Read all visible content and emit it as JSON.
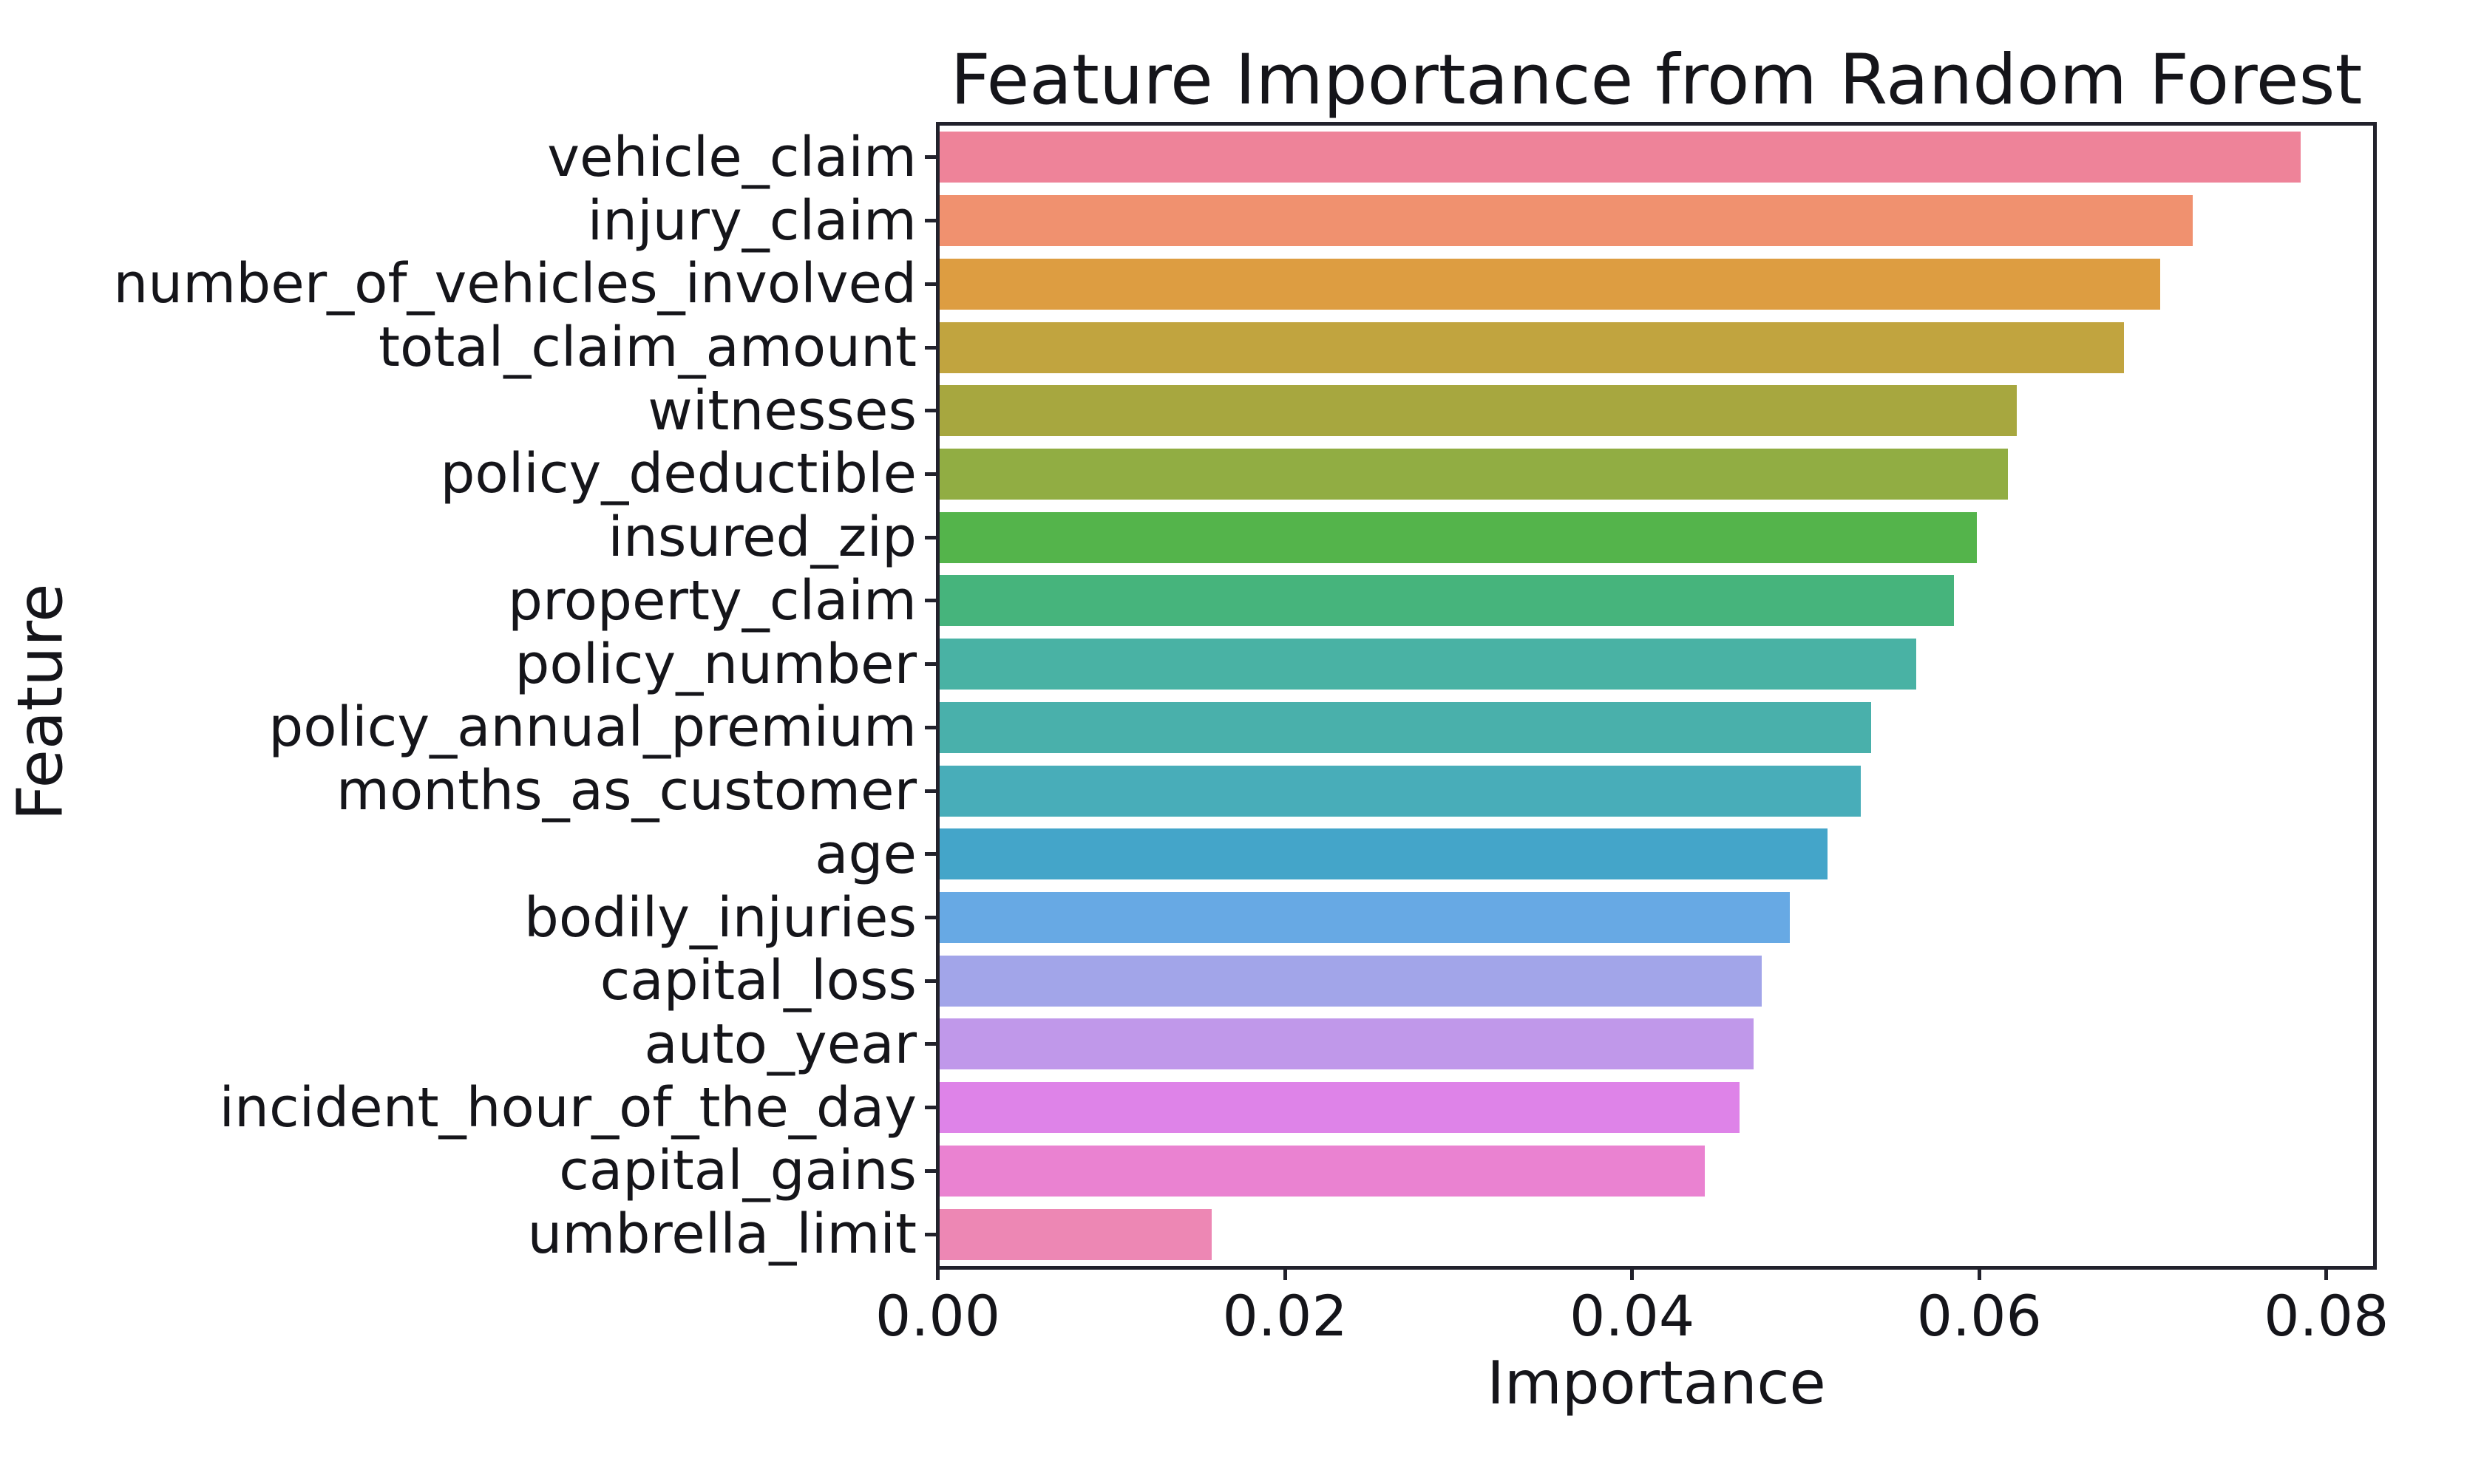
{
  "title": "Feature Importance from Random Forest",
  "colors": {
    "background": "#ffffff",
    "axis_spine": "#22222c",
    "text": "#15151a"
  },
  "chart_data": {
    "type": "bar",
    "orientation": "horizontal",
    "title": "Feature Importance from Random Forest",
    "xlabel": "Importance",
    "ylabel": "Feature",
    "xlim": [
      0,
      0.0828
    ],
    "grid": false,
    "x_ticks": [
      {
        "value": 0.0,
        "label": "0.00"
      },
      {
        "value": 0.02,
        "label": "0.02"
      },
      {
        "value": 0.04,
        "label": "0.04"
      },
      {
        "value": 0.06,
        "label": "0.06"
      },
      {
        "value": 0.08,
        "label": "0.08"
      }
    ],
    "categories": [
      "vehicle_claim",
      "injury_claim",
      "number_of_vehicles_involved",
      "total_claim_amount",
      "witnesses",
      "policy_deductible",
      "insured_zip",
      "property_claim",
      "policy_number",
      "policy_annual_premium",
      "months_as_customer",
      "age",
      "bodily_injuries",
      "capital_loss",
      "auto_year",
      "incident_hour_of_the_day",
      "capital_gains",
      "umbrella_limit"
    ],
    "values": [
      0.0786,
      0.0724,
      0.0705,
      0.0684,
      0.0622,
      0.0617,
      0.0599,
      0.0586,
      0.0564,
      0.0538,
      0.0532,
      0.0513,
      0.0491,
      0.0475,
      0.047,
      0.0462,
      0.0442,
      0.0157
    ],
    "bar_colors": [
      "#ee8399",
      "#f0916f",
      "#dd9d41",
      "#c1a43f",
      "#a7a73f",
      "#91ad43",
      "#54b44b",
      "#46b47c",
      "#49b2a4",
      "#49b0ab",
      "#48adb9",
      "#44a5c9",
      "#67a9e4",
      "#a2a5e9",
      "#c098ea",
      "#de83e8",
      "#ea82d1",
      "#ed87b4"
    ]
  }
}
